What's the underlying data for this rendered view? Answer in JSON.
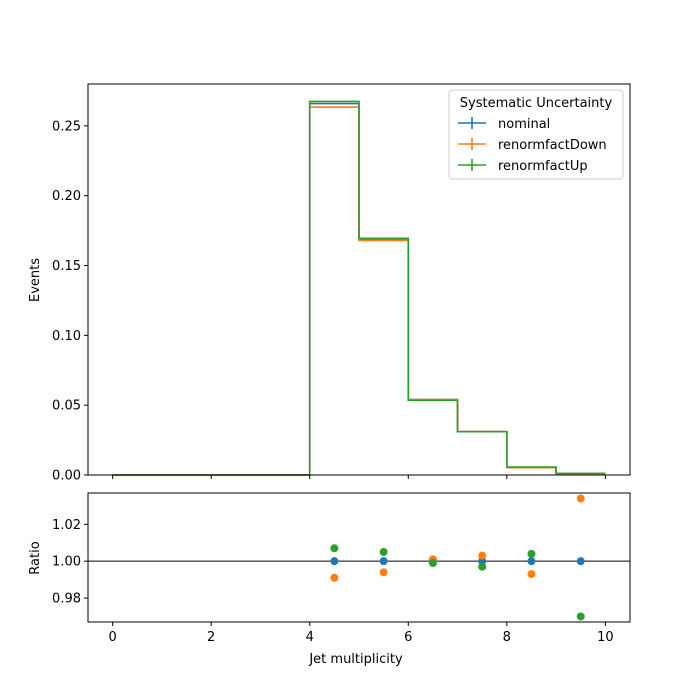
{
  "chart_data": [
    {
      "type": "step",
      "title": "",
      "xlabel": "",
      "ylabel": "Events",
      "xlim": [
        -0.5,
        10.5
      ],
      "ylim": [
        0,
        0.28
      ],
      "xticks": [
        0,
        2,
        4,
        6,
        8,
        10
      ],
      "yticks": [
        "0.00",
        "0.05",
        "0.10",
        "0.15",
        "0.20",
        "0.25"
      ],
      "show_x_tick_labels": false,
      "bin_edges": [
        0,
        1,
        2,
        3,
        4,
        5,
        6,
        7,
        8,
        9,
        10
      ],
      "legend": {
        "title": "Systematic Uncertainty",
        "placement": "top-right"
      },
      "series": [
        {
          "name": "nominal",
          "color": "#1f77b4",
          "values": [
            0,
            0,
            0,
            0,
            0.266,
            0.169,
            0.054,
            0.031,
            0.0055,
            0.0012
          ]
        },
        {
          "name": "renormfactDown",
          "color": "#ff7f0e",
          "values": [
            0,
            0,
            0,
            0,
            0.2635,
            0.168,
            0.054,
            0.031,
            0.0052,
            0.0012
          ]
        },
        {
          "name": "renormfactUp",
          "color": "#2ca02c",
          "values": [
            0,
            0,
            0,
            0,
            0.2675,
            0.1695,
            0.0535,
            0.031,
            0.0057,
            0.0011
          ]
        }
      ]
    },
    {
      "type": "scatter",
      "title": "",
      "xlabel": "Jet multiplicity",
      "ylabel": "Ratio",
      "xlim": [
        -0.5,
        10.5
      ],
      "ylim": [
        0.967,
        1.037
      ],
      "xticks": [
        "0",
        "2",
        "4",
        "6",
        "8",
        "10"
      ],
      "yticks": [
        "0.98",
        "1.00",
        "1.02"
      ],
      "reference_line": 1.0,
      "series": [
        {
          "name": "nominal",
          "color": "#1f77b4",
          "x": [
            4.5,
            5.5,
            6.5,
            7.5,
            8.5,
            9.5
          ],
          "y": [
            1.0,
            1.0,
            1.0,
            1.0,
            1.0,
            1.0
          ]
        },
        {
          "name": "renormfactDown",
          "color": "#ff7f0e",
          "x": [
            4.5,
            5.5,
            6.5,
            7.5,
            8.5,
            9.5
          ],
          "y": [
            0.991,
            0.994,
            1.001,
            1.003,
            0.993,
            1.034
          ]
        },
        {
          "name": "renormfactUp",
          "color": "#2ca02c",
          "x": [
            4.5,
            5.5,
            6.5,
            7.5,
            8.5,
            9.5
          ],
          "y": [
            1.007,
            1.005,
            0.999,
            0.997,
            1.004,
            0.97
          ]
        }
      ]
    }
  ]
}
